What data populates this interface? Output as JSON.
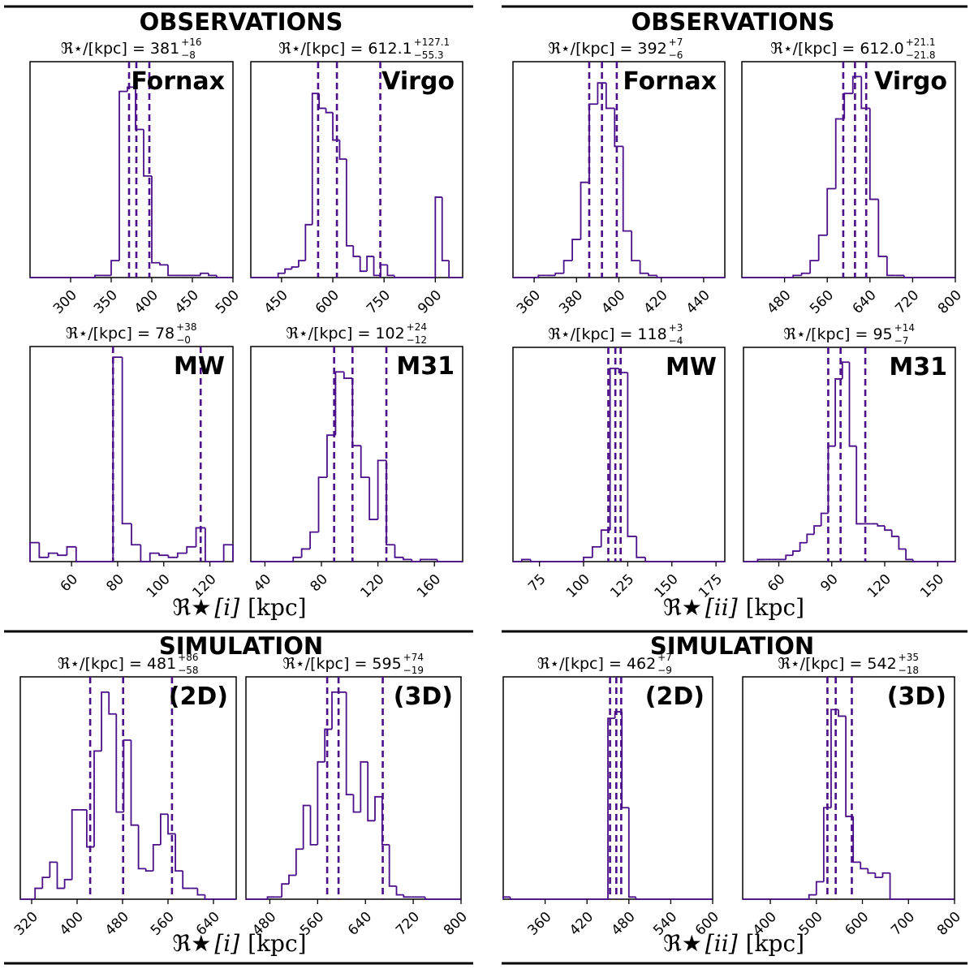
{
  "figure": {
    "top_left": "OBSERVATIONS",
    "top_right": "OBSERVATIONS",
    "bottom_left": "SIMULATION",
    "bottom_right": "SIMULATION",
    "xlabel_left": {
      "symbol": "ℜ★",
      "index": "[i]",
      "unit": "[kpc]"
    },
    "xlabel_right": {
      "symbol": "ℜ★",
      "index": "[ii]",
      "unit": "[kpc]"
    },
    "stat_prefix": "ℜ⋆/[kpc] = ",
    "hist_color": "#4b0f8a",
    "line_color": "#4b0f8a"
  },
  "chart_data": [
    {
      "id": "obs-i-fornax",
      "type": "histogram",
      "label": "Fornax",
      "stat": {
        "value": "381",
        "plus": "+16",
        "minus": "−8"
      },
      "xlim": [
        250,
        500
      ],
      "xticks": [
        300,
        350,
        400,
        450,
        500
      ],
      "bin_edges": [
        250,
        260,
        270,
        280,
        290,
        300,
        310,
        320,
        330,
        340,
        350,
        360,
        370,
        380,
        390,
        400,
        410,
        420,
        430,
        440,
        450,
        460,
        470,
        480,
        490,
        500
      ],
      "counts": [
        0,
        0,
        0,
        0,
        0,
        0,
        0,
        0,
        1,
        1,
        8,
        88,
        90,
        70,
        48,
        7,
        6,
        1,
        1,
        1,
        1,
        2,
        1,
        0,
        0
      ],
      "ymax": 100,
      "lines": [
        372,
        381,
        397
      ]
    },
    {
      "id": "obs-i-virgo",
      "type": "histogram",
      "label": "Virgo",
      "stat": {
        "value": "612.1",
        "plus": "+127.1",
        "minus": "−55.3"
      },
      "xlim": [
        360,
        980
      ],
      "xticks": [
        450,
        600,
        750,
        900
      ],
      "bin_edges": [
        360,
        380,
        400,
        420,
        440,
        460,
        480,
        500,
        520,
        540,
        560,
        580,
        600,
        620,
        640,
        660,
        680,
        700,
        720,
        740,
        760,
        780,
        800,
        820,
        840,
        860,
        880,
        900,
        920,
        940,
        960,
        980
      ],
      "counts": [
        0,
        0,
        0,
        0,
        2,
        4,
        5,
        8,
        25,
        87,
        80,
        78,
        65,
        56,
        15,
        10,
        3,
        10,
        1,
        6,
        1,
        0,
        0,
        0,
        0,
        0,
        0,
        38,
        8,
        0,
        0
      ],
      "ymax": 100,
      "lines": [
        557,
        612,
        739
      ]
    },
    {
      "id": "obs-ii-fornax",
      "type": "histogram",
      "label": "Fornax",
      "stat": {
        "value": "392",
        "plus": "+7",
        "minus": "−6"
      },
      "xlim": [
        350,
        450
      ],
      "xticks": [
        360,
        380,
        400,
        420,
        440
      ],
      "bin_edges": [
        350,
        354,
        358,
        362,
        366,
        370,
        374,
        378,
        382,
        386,
        390,
        394,
        398,
        402,
        406,
        410,
        414,
        418,
        422,
        426,
        430,
        434,
        438,
        442,
        446,
        450
      ],
      "counts": [
        0,
        0,
        0,
        1,
        1,
        2,
        8,
        18,
        45,
        82,
        92,
        80,
        62,
        22,
        8,
        2,
        1,
        0,
        0,
        0,
        0,
        0,
        0,
        0,
        0
      ],
      "ymax": 100,
      "lines": [
        386,
        392,
        399
      ]
    },
    {
      "id": "obs-ii-virgo",
      "type": "histogram",
      "label": "Virgo",
      "stat": {
        "value": "612.0",
        "plus": "+21.1",
        "minus": "−21.8"
      },
      "xlim": [
        400,
        800
      ],
      "xticks": [
        480,
        560,
        640,
        720,
        800
      ],
      "bin_edges": [
        400,
        416,
        432,
        448,
        464,
        480,
        496,
        512,
        528,
        544,
        560,
        576,
        592,
        608,
        624,
        640,
        656,
        672,
        688,
        704,
        720,
        736,
        752,
        768,
        784,
        800
      ],
      "counts": [
        0,
        0,
        0,
        0,
        0,
        0,
        1,
        2,
        8,
        20,
        42,
        75,
        87,
        95,
        80,
        37,
        10,
        1,
        1,
        0,
        0,
        0,
        0,
        0,
        0
      ],
      "ymax": 100,
      "lines": [
        590,
        612,
        633
      ]
    },
    {
      "id": "obs-i-mw",
      "type": "histogram",
      "label": "MW",
      "stat": {
        "value": "78",
        "plus": "+38",
        "minus": "−0"
      },
      "xlim": [
        42,
        130
      ],
      "xticks": [
        60,
        80,
        100,
        120
      ],
      "bin_edges": [
        42,
        46,
        50,
        54,
        58,
        62,
        66,
        70,
        74,
        78,
        82,
        86,
        90,
        94,
        98,
        102,
        106,
        110,
        114,
        118,
        122,
        126,
        130
      ],
      "counts": [
        9,
        2,
        4,
        3,
        7,
        0,
        0,
        0,
        0,
        97,
        18,
        8,
        0,
        4,
        3,
        2,
        4,
        7,
        16,
        0,
        0,
        8
      ],
      "ymax": 100,
      "lines": [
        78,
        116
      ]
    },
    {
      "id": "obs-i-m31",
      "type": "histogram",
      "label": "M31",
      "stat": {
        "value": "102",
        "plus": "+24",
        "minus": "−12"
      },
      "xlim": [
        30,
        180
      ],
      "xticks": [
        40,
        80,
        120,
        160
      ],
      "bin_edges": [
        30,
        36,
        42,
        48,
        54,
        60,
        66,
        72,
        78,
        84,
        90,
        96,
        102,
        108,
        114,
        120,
        126,
        132,
        138,
        144,
        150,
        156,
        162,
        168,
        174,
        180
      ],
      "counts": [
        0,
        0,
        0,
        0,
        0,
        2,
        6,
        14,
        40,
        60,
        90,
        87,
        55,
        40,
        20,
        48,
        8,
        2,
        1,
        0,
        1,
        1,
        0,
        0,
        0
      ],
      "ymax": 100,
      "lines": [
        89,
        102,
        126
      ]
    },
    {
      "id": "obs-ii-mw",
      "type": "histogram",
      "label": "MW",
      "stat": {
        "value": "118",
        "plus": "+3",
        "minus": "−4"
      },
      "xlim": [
        60,
        180
      ],
      "xticks": [
        75,
        100,
        125,
        150,
        175
      ],
      "bin_edges": [
        60,
        65,
        70,
        75,
        80,
        85,
        90,
        95,
        100,
        105,
        110,
        115,
        120,
        125,
        130,
        135,
        140,
        145,
        150,
        155,
        160,
        165,
        170,
        175,
        180
      ],
      "counts": [
        0,
        1,
        0,
        0,
        0,
        0,
        0,
        0,
        2,
        7,
        15,
        92,
        90,
        12,
        2,
        0,
        0,
        0,
        0,
        0,
        0,
        0,
        0,
        0
      ],
      "ymax": 100,
      "lines": [
        114,
        118,
        121
      ]
    },
    {
      "id": "obs-ii-m31",
      "type": "histogram",
      "label": "M31",
      "stat": {
        "value": "95",
        "plus": "+14",
        "minus": "−7"
      },
      "xlim": [
        40,
        160
      ],
      "xticks": [
        60,
        90,
        120,
        150
      ],
      "bin_edges": [
        40,
        44,
        48,
        52,
        56,
        60,
        64,
        68,
        72,
        76,
        80,
        84,
        88,
        92,
        96,
        100,
        104,
        108,
        112,
        116,
        120,
        124,
        128,
        132,
        136,
        140,
        144,
        148,
        152,
        156,
        160
      ],
      "counts": [
        0,
        0,
        1,
        1,
        1,
        1,
        3,
        5,
        9,
        13,
        17,
        23,
        55,
        87,
        95,
        55,
        18,
        18,
        18,
        17,
        15,
        12,
        6,
        1,
        0,
        0,
        0,
        0,
        0,
        0
      ],
      "ymax": 100,
      "lines": [
        88,
        95,
        109
      ]
    },
    {
      "id": "sim-i-2d",
      "type": "histogram",
      "label": "(2D)",
      "stat": {
        "value": "481",
        "plus": "+86",
        "minus": "−58"
      },
      "xlim": [
        300,
        680
      ],
      "xticks": [
        320,
        400,
        480,
        560,
        640
      ],
      "bin_edges": [
        300,
        313,
        326,
        339,
        352,
        365,
        378,
        391,
        404,
        417,
        430,
        443,
        456,
        469,
        482,
        495,
        508,
        521,
        534,
        547,
        560,
        573,
        586,
        599,
        612,
        625,
        638,
        651,
        664,
        680
      ],
      "counts": [
        0,
        0,
        5,
        10,
        17,
        5,
        9,
        41,
        41,
        24,
        68,
        95,
        85,
        40,
        73,
        34,
        14,
        13,
        25,
        39,
        30,
        13,
        5,
        5,
        2,
        0,
        0,
        0,
        0
      ],
      "ymax": 100,
      "lines": [
        423,
        481,
        567
      ]
    },
    {
      "id": "sim-i-3d",
      "type": "histogram",
      "label": "(3D)",
      "stat": {
        "value": "595",
        "plus": "+74",
        "minus": "−19"
      },
      "xlim": [
        440,
        800
      ],
      "xticks": [
        480,
        560,
        640,
        720,
        800
      ],
      "bin_edges": [
        440,
        452,
        464,
        476,
        488,
        500,
        512,
        524,
        536,
        548,
        560,
        572,
        584,
        596,
        608,
        620,
        632,
        644,
        656,
        668,
        680,
        692,
        704,
        716,
        728,
        740,
        752,
        764,
        776,
        788,
        800
      ],
      "counts": [
        0,
        0,
        0,
        1,
        1,
        7,
        11,
        23,
        43,
        25,
        63,
        78,
        95,
        95,
        48,
        40,
        63,
        36,
        47,
        25,
        6,
        2,
        1,
        1,
        1,
        0,
        0,
        0,
        0,
        0
      ],
      "ymax": 100,
      "lines": [
        576,
        595,
        669
      ]
    },
    {
      "id": "sim-ii-2d",
      "type": "histogram",
      "label": "(2D)",
      "stat": {
        "value": "462",
        "plus": "+7",
        "minus": "−9"
      },
      "xlim": [
        300,
        600
      ],
      "xticks": [
        360,
        420,
        480,
        540,
        600
      ],
      "bin_edges": [
        300,
        310,
        320,
        330,
        340,
        350,
        360,
        370,
        380,
        390,
        400,
        410,
        420,
        430,
        440,
        450,
        460,
        470,
        480,
        490,
        500,
        510,
        520,
        530,
        540,
        550,
        560,
        570,
        580,
        590,
        600
      ],
      "counts": [
        1,
        0,
        0,
        0,
        0,
        0,
        0,
        0,
        0,
        0,
        0,
        0,
        0,
        0,
        0,
        83,
        86,
        42,
        1,
        0,
        0,
        0,
        0,
        0,
        0,
        0,
        0,
        0,
        0,
        0
      ],
      "ymax": 100,
      "lines": [
        453,
        462,
        469
      ]
    },
    {
      "id": "sim-ii-3d",
      "type": "histogram",
      "label": "(3D)",
      "stat": {
        "value": "542",
        "plus": "+35",
        "minus": "−18"
      },
      "xlim": [
        340,
        800
      ],
      "xticks": [
        400,
        500,
        600,
        700,
        800
      ],
      "bin_edges": [
        340,
        356,
        372,
        388,
        404,
        420,
        436,
        452,
        468,
        484,
        500,
        516,
        532,
        548,
        564,
        580,
        596,
        612,
        628,
        644,
        660,
        676,
        692,
        708,
        724,
        740,
        756,
        772,
        788,
        800
      ],
      "counts": [
        0,
        0,
        0,
        0,
        0,
        0,
        0,
        0,
        0,
        2,
        8,
        42,
        87,
        84,
        38,
        17,
        14,
        12,
        10,
        12,
        0,
        0,
        0,
        0,
        0,
        0,
        0,
        0,
        0
      ],
      "ymax": 100,
      "lines": [
        524,
        542,
        577
      ]
    }
  ]
}
